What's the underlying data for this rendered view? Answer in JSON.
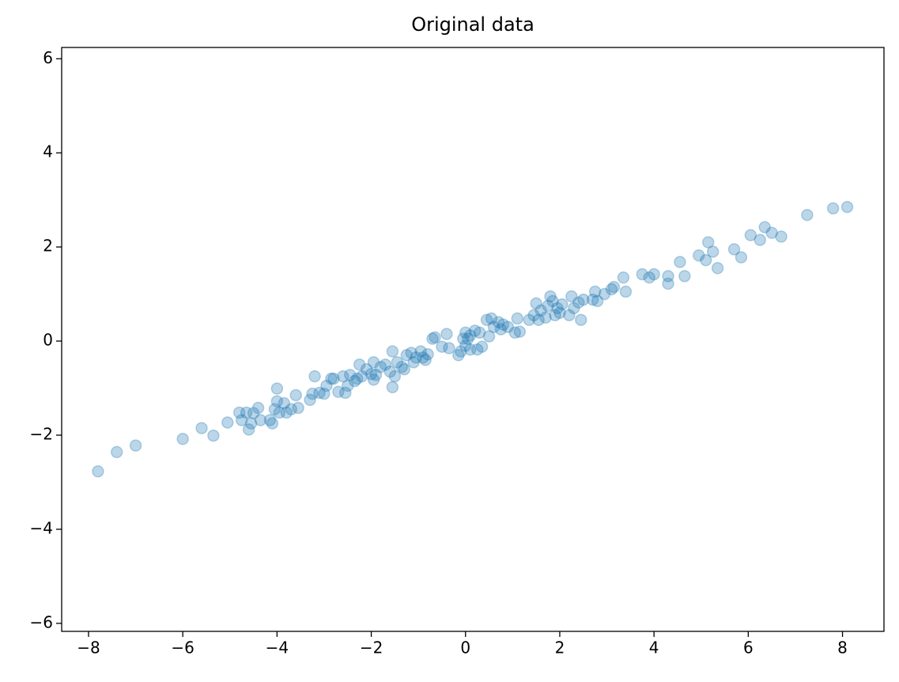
{
  "chart_data": {
    "type": "scatter",
    "title": "Original data",
    "x": [
      -7.8,
      -7.4,
      -7.0,
      -6.0,
      -5.6,
      -5.35,
      -5.05,
      -4.8,
      -4.75,
      -4.65,
      -4.6,
      -4.55,
      -4.5,
      -4.4,
      -4.35,
      -4.15,
      -4.1,
      -4.05,
      -4.0,
      -4.0,
      -3.95,
      -3.85,
      -3.8,
      -3.7,
      -3.6,
      -3.55,
      -3.3,
      -3.25,
      -3.2,
      -3.1,
      -3.0,
      -2.95,
      -2.85,
      -2.8,
      -2.7,
      -2.6,
      -2.55,
      -2.5,
      -2.45,
      -2.35,
      -2.3,
      -2.25,
      -2.2,
      -2.1,
      -2.0,
      -1.95,
      -1.95,
      -1.9,
      -1.8,
      -1.7,
      -1.6,
      -1.55,
      -1.55,
      -1.5,
      -1.45,
      -1.35,
      -1.3,
      -1.25,
      -1.15,
      -1.1,
      -1.05,
      -0.95,
      -0.9,
      -0.85,
      -0.8,
      -0.7,
      -0.65,
      -0.5,
      -0.4,
      -0.35,
      -0.15,
      -0.1,
      -0.05,
      0.0,
      0.0,
      0.05,
      0.1,
      0.1,
      0.2,
      0.25,
      0.3,
      0.35,
      0.45,
      0.5,
      0.55,
      0.6,
      0.7,
      0.75,
      0.8,
      0.9,
      1.05,
      1.1,
      1.15,
      1.35,
      1.45,
      1.5,
      1.55,
      1.6,
      1.7,
      1.75,
      1.8,
      1.85,
      1.9,
      1.95,
      2.0,
      2.05,
      2.2,
      2.25,
      2.3,
      2.4,
      2.45,
      2.5,
      2.7,
      2.75,
      2.8,
      2.95,
      3.1,
      3.15,
      3.35,
      3.4,
      3.75,
      3.9,
      4.0,
      4.3,
      4.3,
      4.55,
      4.65,
      4.95,
      5.1,
      5.15,
      5.25,
      5.35,
      5.7,
      5.85,
      6.05,
      6.25,
      6.35,
      6.5,
      6.7,
      7.25,
      7.8,
      8.1
    ],
    "y": [
      -2.77,
      -2.36,
      -2.22,
      -2.08,
      -1.85,
      -2.01,
      -1.73,
      -1.52,
      -1.68,
      -1.52,
      -1.88,
      -1.75,
      -1.53,
      -1.42,
      -1.68,
      -1.68,
      -1.75,
      -1.45,
      -1.28,
      -1.01,
      -1.52,
      -1.32,
      -1.52,
      -1.45,
      -1.15,
      -1.42,
      -1.25,
      -1.12,
      -0.75,
      -1.1,
      -1.12,
      -0.95,
      -0.8,
      -0.8,
      -1.08,
      -0.75,
      -1.1,
      -0.95,
      -0.72,
      -0.85,
      -0.8,
      -0.5,
      -0.75,
      -0.6,
      -0.7,
      -0.45,
      -0.82,
      -0.72,
      -0.55,
      -0.5,
      -0.65,
      -0.22,
      -0.98,
      -0.75,
      -0.45,
      -0.55,
      -0.6,
      -0.3,
      -0.25,
      -0.45,
      -0.35,
      -0.22,
      -0.35,
      -0.4,
      -0.28,
      0.05,
      0.08,
      -0.12,
      0.15,
      -0.15,
      -0.3,
      -0.22,
      0.05,
      0.18,
      -0.1,
      0.05,
      0.12,
      -0.18,
      0.22,
      -0.18,
      0.18,
      -0.12,
      0.45,
      0.1,
      0.48,
      0.3,
      0.4,
      0.25,
      0.35,
      0.3,
      0.18,
      0.48,
      0.2,
      0.45,
      0.55,
      0.8,
      0.45,
      0.65,
      0.5,
      0.75,
      0.95,
      0.85,
      0.55,
      0.7,
      0.6,
      0.78,
      0.55,
      0.95,
      0.7,
      0.82,
      0.45,
      0.88,
      0.88,
      1.05,
      0.85,
      1.0,
      1.1,
      1.15,
      1.35,
      1.05,
      1.42,
      1.35,
      1.42,
      1.22,
      1.38,
      1.68,
      1.38,
      1.82,
      1.72,
      2.1,
      1.9,
      1.55,
      1.95,
      1.78,
      2.25,
      2.15,
      2.42,
      2.3,
      2.22,
      2.68,
      2.82,
      2.85
    ],
    "color": "#1f77b4",
    "xlim": [
      -8.57,
      8.88
    ],
    "ylim": [
      -6.17,
      6.24
    ],
    "xticks": [
      {
        "value": -8,
        "label": "−8"
      },
      {
        "value": -6,
        "label": "−6"
      },
      {
        "value": -4,
        "label": "−4"
      },
      {
        "value": -2,
        "label": "−2"
      },
      0,
      2,
      4,
      6,
      8
    ],
    "yticks": [
      {
        "value": -6,
        "label": "−6"
      },
      {
        "value": -4,
        "label": "−4"
      },
      {
        "value": -2,
        "label": "−2"
      },
      0,
      2,
      4,
      6
    ]
  }
}
